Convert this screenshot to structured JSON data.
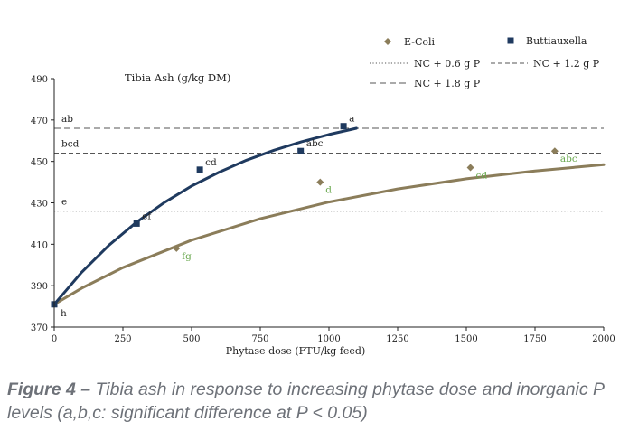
{
  "chart_data": {
    "type": "scatter",
    "title": "Tibia Ash (g/kg DM)",
    "xlabel": "Phytase dose (FTU/kg feed)",
    "ylabel": "",
    "xlim": [
      0,
      2000
    ],
    "ylim": [
      370,
      490
    ],
    "xticks": [
      "0",
      "250",
      "500",
      "750",
      "1000",
      "1250",
      "1500",
      "1750",
      "2000"
    ],
    "yticks": [
      "370",
      "390",
      "410",
      "430",
      "450",
      "470",
      "490"
    ],
    "series": [
      {
        "name": "E-Coli",
        "marker": "diamond",
        "color": "#8b7d5a",
        "label_color": "#6aa84f",
        "points": [
          {
            "x": 0,
            "y": 381,
            "label": ""
          },
          {
            "x": 445,
            "y": 408,
            "label": "fg"
          },
          {
            "x": 968,
            "y": 440,
            "label": "d"
          },
          {
            "x": 1515,
            "y": 447,
            "label": "cd"
          },
          {
            "x": 1822,
            "y": 455,
            "label": "abc"
          }
        ],
        "trendline": [
          [
            0,
            381
          ],
          [
            100,
            388.8
          ],
          [
            250,
            398.7
          ],
          [
            500,
            412.0
          ],
          [
            750,
            422.3
          ],
          [
            1000,
            430.4
          ],
          [
            1250,
            436.7
          ],
          [
            1500,
            441.6
          ],
          [
            1750,
            445.4
          ],
          [
            2000,
            448.4
          ]
        ]
      },
      {
        "name": "Buttiauxella",
        "marker": "square",
        "color": "#1f3a5f",
        "label_color": "#222222",
        "points": [
          {
            "x": 0,
            "y": 381,
            "label": "h"
          },
          {
            "x": 300,
            "y": 420,
            "label": "ef"
          },
          {
            "x": 530,
            "y": 446,
            "label": "cd"
          },
          {
            "x": 897,
            "y": 455,
            "label": "abc"
          },
          {
            "x": 1053,
            "y": 467,
            "label": "a"
          }
        ],
        "trendline": [
          [
            0,
            381
          ],
          [
            100,
            396.5
          ],
          [
            200,
            409.6
          ],
          [
            300,
            420.7
          ],
          [
            400,
            430.1
          ],
          [
            500,
            438.1
          ],
          [
            600,
            444.8
          ],
          [
            700,
            450.6
          ],
          [
            800,
            455.4
          ],
          [
            900,
            459.5
          ],
          [
            1000,
            463.0
          ],
          [
            1100,
            466.0
          ]
        ]
      }
    ],
    "reference_lines": [
      {
        "name": "NC + 0.6 g P",
        "y": 426,
        "style": "dotted",
        "label": "e"
      },
      {
        "name": "NC + 1.2 g P",
        "y": 454,
        "style": "dashed",
        "label": "bcd"
      },
      {
        "name": "NC + 1.8 g P",
        "y": 466,
        "style": "long-dashed",
        "label": "ab"
      }
    ],
    "legend": {
      "placement": "top-right",
      "entries": [
        "E-Coli",
        "Buttiauxella",
        "NC + 0.6 g P",
        "NC + 1.2 g P",
        "NC + 1.8 g P"
      ]
    },
    "grid": false
  },
  "caption": {
    "prefix": "Figure 4 –",
    "text": " Tibia ash in response to increasing phytase dose and inorganic P levels (a,b,c: significant difference at P < 0.05)"
  }
}
